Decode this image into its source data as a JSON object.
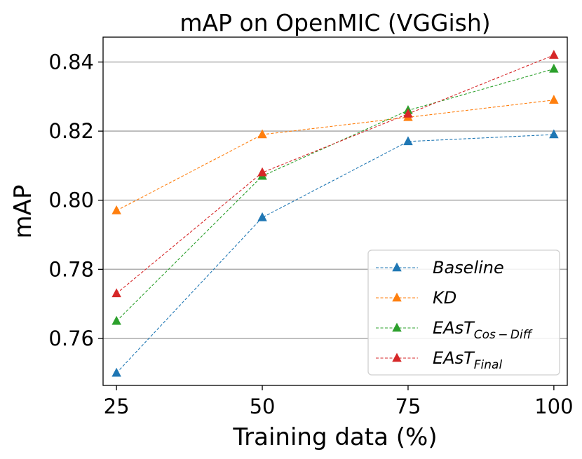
{
  "chart_data": {
    "type": "line",
    "title": "mAP on OpenMIC (VGGish)",
    "xlabel": "Training data (%)",
    "ylabel": "mAP",
    "x": [
      25,
      50,
      75,
      100
    ],
    "x_tick_labels": [
      "25",
      "50",
      "75",
      "100"
    ],
    "y_ticks": [
      0.76,
      0.78,
      0.8,
      0.82,
      0.84
    ],
    "y_tick_labels": [
      "0.76",
      "0.78",
      "0.80",
      "0.82",
      "0.84"
    ],
    "xlim": [
      22.7,
      102.3
    ],
    "ylim": [
      0.7464,
      0.8472
    ],
    "grid": "y-major",
    "legend_position": "lower right",
    "marker": "triangle",
    "line_style": "dashed",
    "series": [
      {
        "name": "Baseline",
        "name_base": "Baseline",
        "name_sub": "",
        "color": "#1f77b4",
        "values": [
          0.75,
          0.795,
          0.817,
          0.819
        ]
      },
      {
        "name": "KD",
        "name_base": "KD",
        "name_sub": "",
        "color": "#ff7f0e",
        "values": [
          0.797,
          0.819,
          0.824,
          0.829
        ]
      },
      {
        "name": "EAsT_Cos-Diff",
        "name_base": "EAsT",
        "name_sub": "Cos − Diff",
        "color": "#2ca02c",
        "values": [
          0.765,
          0.807,
          0.826,
          0.838
        ]
      },
      {
        "name": "EAsT_Final",
        "name_base": "EAsT",
        "name_sub": "Final",
        "color": "#d62728",
        "values": [
          0.773,
          0.808,
          0.825,
          0.842
        ]
      }
    ]
  }
}
